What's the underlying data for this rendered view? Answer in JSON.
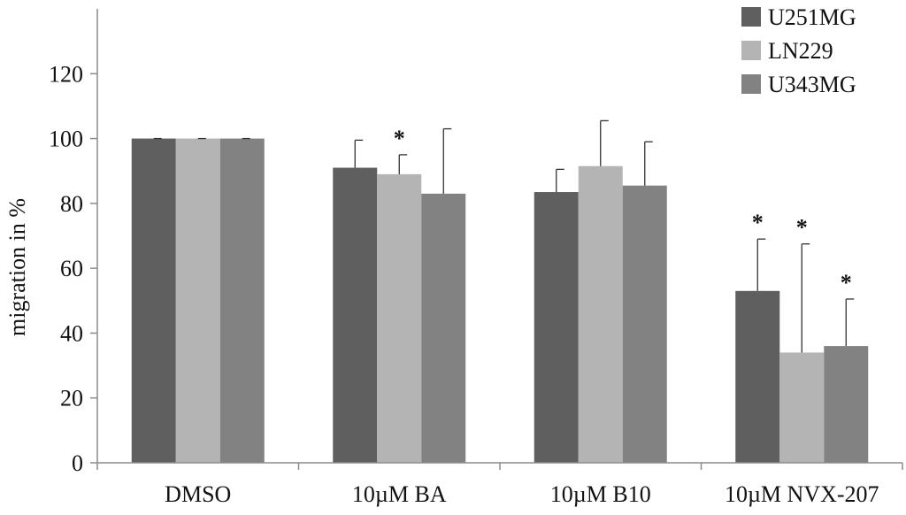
{
  "chart_data": {
    "type": "bar",
    "title": "",
    "xlabel": "",
    "ylabel": "migration in %",
    "ylim": [
      0,
      140
    ],
    "yticks": [
      0,
      20,
      40,
      60,
      80,
      100,
      120
    ],
    "categories": [
      "DMSO",
      "10µM BA",
      "10µM B10",
      "10µM NVX-207"
    ],
    "legend_position": "top-right",
    "series": [
      {
        "name": "U251MG",
        "color": "#5f5f5f",
        "values": [
          100,
          91,
          83.5,
          53
        ],
        "errors": [
          0,
          8.5,
          7,
          16
        ],
        "significant": [
          "",
          "",
          "",
          "*"
        ]
      },
      {
        "name": "LN229",
        "color": "#b4b4b4",
        "values": [
          100,
          89,
          91.5,
          34
        ],
        "errors": [
          0,
          6,
          14,
          33.5
        ],
        "significant": [
          "",
          "*",
          "",
          "*"
        ]
      },
      {
        "name": "U343MG",
        "color": "#828282",
        "values": [
          100,
          83,
          85.5,
          36
        ],
        "errors": [
          0,
          20,
          13.5,
          14.5
        ],
        "significant": [
          "",
          "",
          "",
          "*"
        ]
      }
    ]
  }
}
